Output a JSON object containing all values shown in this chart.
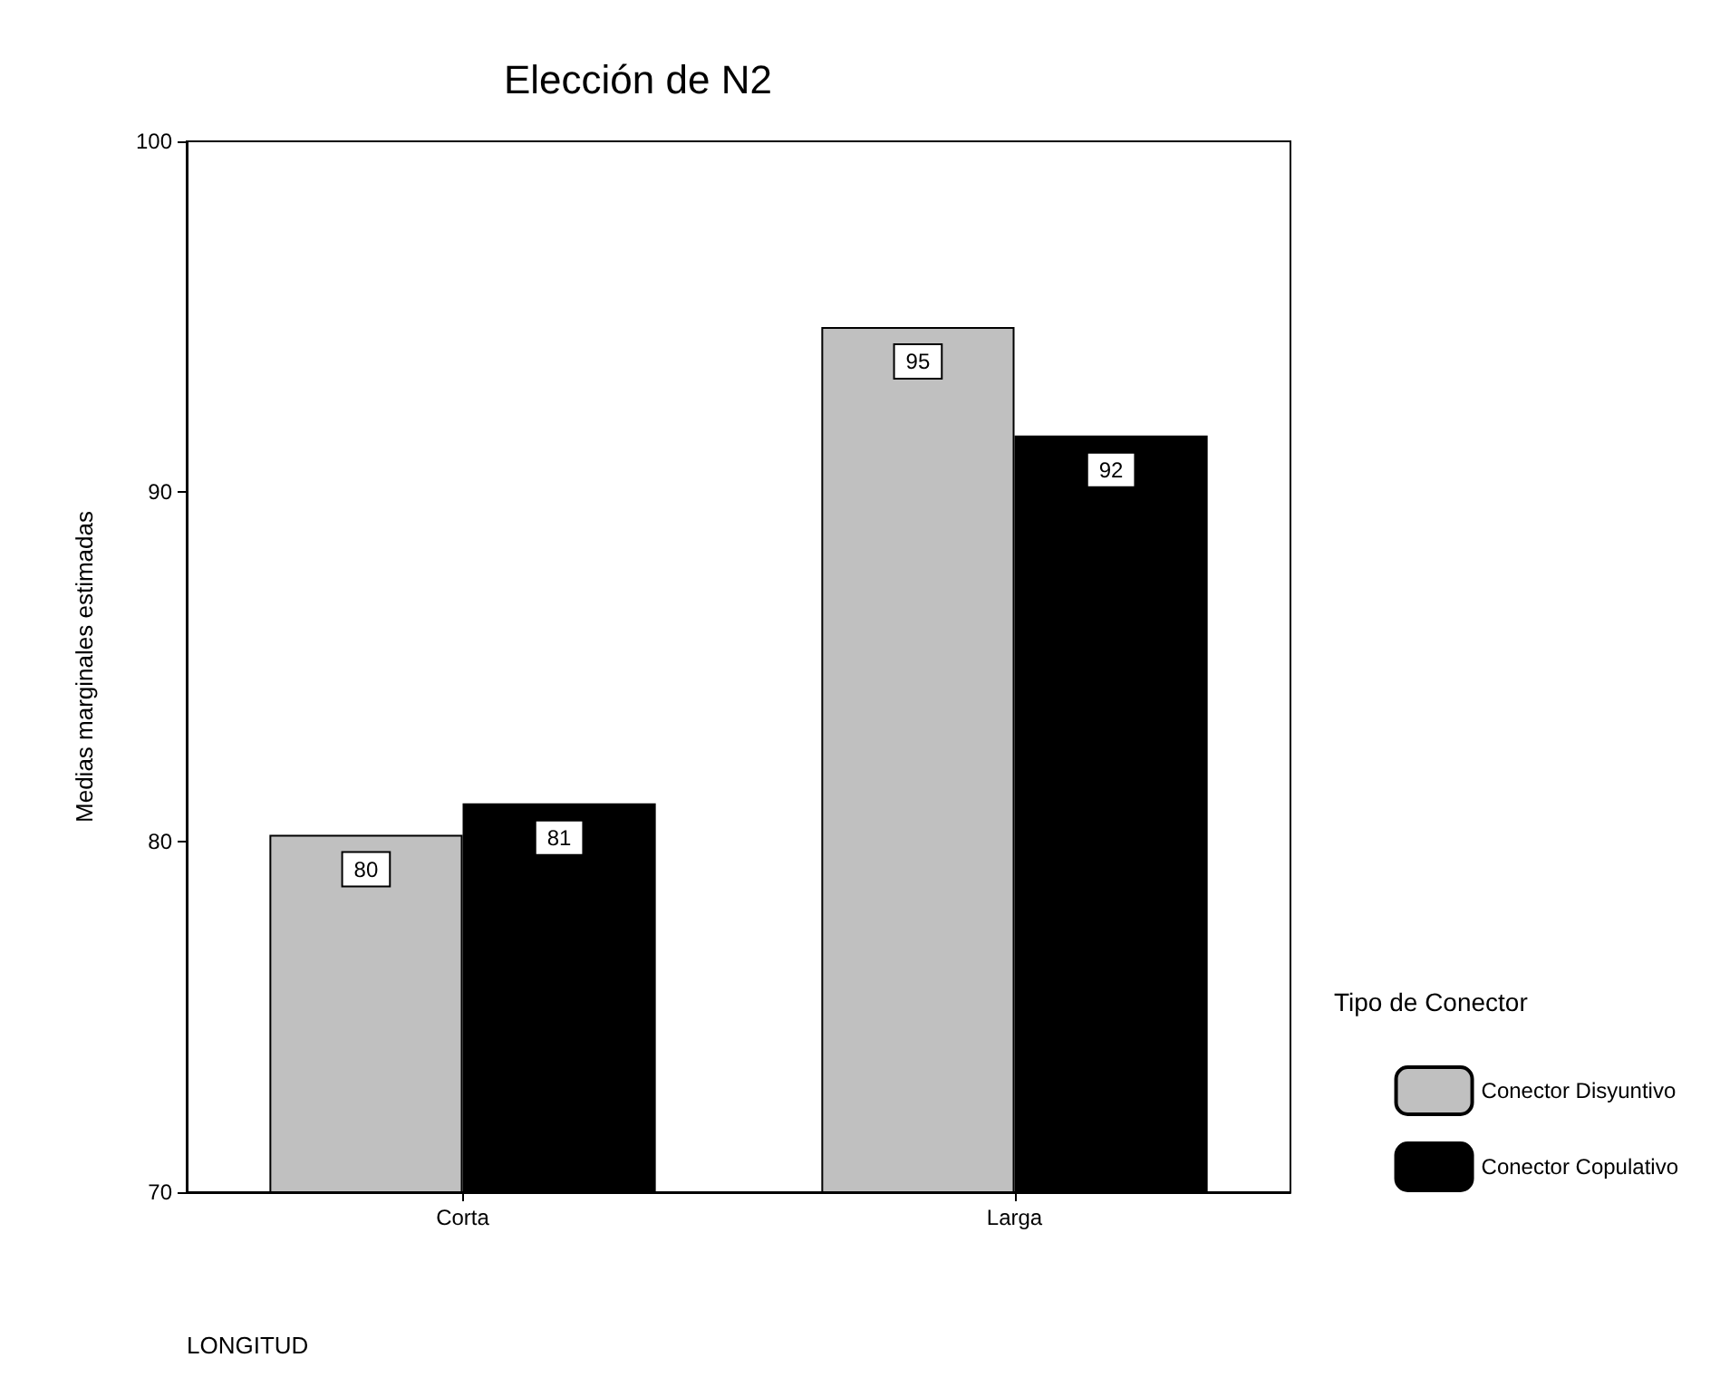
{
  "chart_data": {
    "type": "bar",
    "title": "Elección de N2",
    "xlabel": "LONGITUD",
    "ylabel": "Medias marginales estimadas",
    "legend_title": "Tipo de Conector",
    "categories": [
      "Corta",
      "Larga"
    ],
    "series": [
      {
        "name": "Conector Disyuntivo",
        "color": "#c0c0c0",
        "values": [
          80.2,
          94.7
        ],
        "value_labels": [
          "80",
          "95"
        ]
      },
      {
        "name": "Conector Copulativo",
        "color": "#000000",
        "values": [
          81.1,
          91.6
        ],
        "value_labels": [
          "81",
          "92"
        ]
      }
    ],
    "ylim": [
      70,
      100
    ],
    "yticks": [
      70,
      80,
      90,
      100
    ],
    "grid": false,
    "legend": "right"
  }
}
